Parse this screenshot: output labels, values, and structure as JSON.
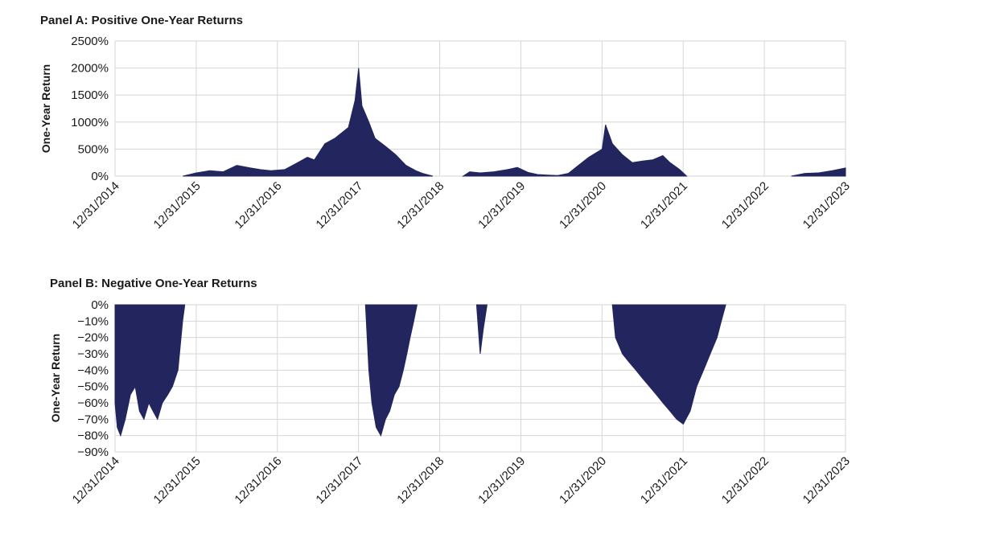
{
  "colors": {
    "area": "#23265e",
    "grid": "#d6d6d6",
    "text": "#1a1a1a"
  },
  "chart_data": [
    {
      "type": "area",
      "title": "Panel A: Positive One-Year Returns",
      "xlabel": "",
      "ylabel": "One-Year Return",
      "x_tick_labels": [
        "12/31/2014",
        "12/31/2015",
        "12/31/2016",
        "12/31/2017",
        "12/31/2018",
        "12/31/2019",
        "12/31/2020",
        "12/31/2021",
        "12/31/2022",
        "12/31/2023"
      ],
      "y_tick_labels": [
        "2500%",
        "2000%",
        "1500%",
        "1000%",
        "500%",
        "0%"
      ],
      "y_ticks": [
        2500,
        2000,
        1500,
        1000,
        500,
        0
      ],
      "ylim": [
        0,
        2500
      ],
      "xlim": [
        "2014-12-31",
        "2023-12-31"
      ],
      "grid": true,
      "series": [
        {
          "x": [
            "2015-11-01",
            "2016-01-01",
            "2016-03-01",
            "2016-05-01",
            "2016-07-01",
            "2016-09-01",
            "2016-10-15",
            "2016-12-01",
            "2017-02-01",
            "2017-04-01",
            "2017-05-15",
            "2017-06-15",
            "2017-08-01",
            "2017-09-15",
            "2017-11-15",
            "2017-12-15",
            "2017-12-31",
            "2018-01-15",
            "2018-02-15",
            "2018-03-15",
            "2018-05-01",
            "2018-06-15",
            "2018-08-01",
            "2018-09-15",
            "2018-10-15",
            "2018-11-30"
          ],
          "values": [
            0,
            60,
            100,
            80,
            200,
            150,
            120,
            100,
            120,
            250,
            350,
            300,
            600,
            700,
            900,
            1400,
            2000,
            1300,
            1000,
            700,
            550,
            400,
            200,
            100,
            50,
            0
          ]
        },
        {
          "x": [
            "2019-04-15",
            "2019-05-15",
            "2019-07-01",
            "2019-09-01",
            "2019-11-01",
            "2019-12-15",
            "2020-02-01",
            "2020-03-15",
            "2020-05-01",
            "2020-06-15",
            "2020-08-01",
            "2020-09-15",
            "2020-11-01",
            "2020-12-31",
            "2021-01-15",
            "2021-02-15",
            "2021-03-31",
            "2021-05-15",
            "2021-07-01",
            "2021-08-15",
            "2021-09-30",
            "2021-11-01",
            "2021-12-15",
            "2022-01-15"
          ],
          "values": [
            0,
            80,
            60,
            80,
            120,
            160,
            70,
            30,
            20,
            10,
            50,
            200,
            350,
            500,
            950,
            600,
            400,
            250,
            280,
            300,
            380,
            250,
            120,
            0
          ]
        },
        {
          "x": [
            "2023-05-01",
            "2023-07-01",
            "2023-09-01",
            "2023-11-01",
            "2023-12-31"
          ],
          "values": [
            0,
            50,
            60,
            100,
            150
          ]
        }
      ]
    },
    {
      "type": "area",
      "title": "Panel B: Negative One-Year Returns",
      "xlabel": "",
      "ylabel": "One-Year Return",
      "x_tick_labels": [
        "12/31/2014",
        "12/31/2015",
        "12/31/2016",
        "12/31/2017",
        "12/31/2018",
        "12/31/2019",
        "12/31/2020",
        "12/31/2021",
        "12/31/2022",
        "12/31/2023"
      ],
      "y_tick_labels": [
        "0%",
        "−10%",
        "−20%",
        "−30%",
        "−40%",
        "−50%",
        "−60%",
        "−70%",
        "−80%",
        "−90%"
      ],
      "y_ticks": [
        0,
        -10,
        -20,
        -30,
        -40,
        -50,
        -60,
        -70,
        -80,
        -90
      ],
      "ylim": [
        -90,
        0
      ],
      "xlim": [
        "2014-12-31",
        "2023-12-31"
      ],
      "grid": true,
      "series": [
        {
          "x": [
            "2014-12-31",
            "2015-01-10",
            "2015-01-25",
            "2015-02-15",
            "2015-03-10",
            "2015-04-01",
            "2015-04-20",
            "2015-05-10",
            "2015-06-01",
            "2015-06-20",
            "2015-07-10",
            "2015-08-01",
            "2015-08-25",
            "2015-09-15",
            "2015-10-10",
            "2015-10-31",
            "2015-11-10"
          ],
          "values": [
            -60,
            -75,
            -80,
            -70,
            -55,
            -50,
            -65,
            -70,
            -60,
            -65,
            -70,
            -60,
            -55,
            -50,
            -40,
            -10,
            0
          ]
        },
        {
          "x": [
            "2018-01-31",
            "2018-02-15",
            "2018-03-01",
            "2018-03-20",
            "2018-04-10",
            "2018-05-01",
            "2018-05-20",
            "2018-06-10",
            "2018-07-01",
            "2018-07-20",
            "2018-08-05",
            "2018-08-20",
            "2018-09-05",
            "2018-09-20"
          ],
          "values": [
            0,
            -40,
            -60,
            -75,
            -80,
            -70,
            -65,
            -55,
            -50,
            -40,
            -30,
            -20,
            -10,
            0
          ]
        },
        {
          "x": [
            "2019-06-15",
            "2019-07-01",
            "2019-07-15",
            "2019-08-01"
          ],
          "values": [
            0,
            -30,
            -15,
            0
          ]
        },
        {
          "x": [
            "2021-02-15",
            "2021-03-01",
            "2021-04-01",
            "2021-05-01",
            "2021-06-01",
            "2021-07-01",
            "2021-08-01",
            "2021-09-01",
            "2021-10-01",
            "2021-11-01",
            "2021-12-01",
            "2021-12-31",
            "2022-01-31",
            "2022-03-01",
            "2022-04-01",
            "2022-05-01",
            "2022-06-01",
            "2022-06-20",
            "2022-07-10"
          ],
          "values": [
            0,
            -20,
            -30,
            -35,
            -40,
            -45,
            -50,
            -55,
            -60,
            -65,
            -70,
            -73,
            -65,
            -50,
            -40,
            -30,
            -20,
            -10,
            0
          ]
        }
      ]
    }
  ]
}
